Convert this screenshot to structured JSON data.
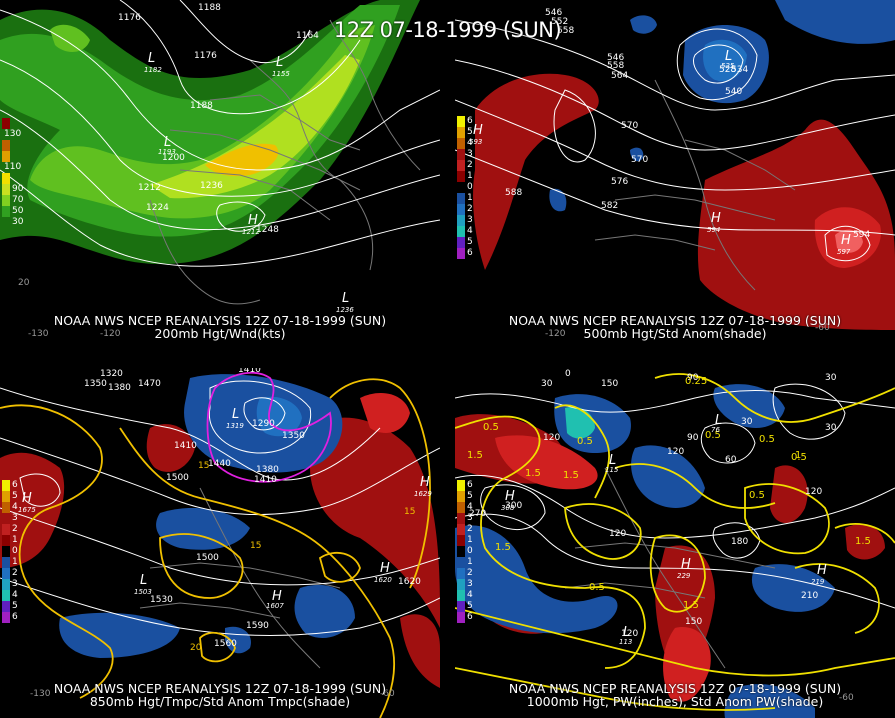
{
  "title": "12Z 07-18-1999 (SUN)",
  "source": "NOAA NWS NCEP REANALYSIS 12Z 07-18-1999 (SUN)",
  "panels": [
    {
      "id": "p1",
      "field": "200mb Hgt/Wnd(kts)",
      "legend": [
        {
          "label": "130",
          "color": "#8b0000"
        },
        {
          "label": "",
          "color": "#c06000"
        },
        {
          "label": "110",
          "color": "#e0a000"
        },
        {
          "label": "",
          "color": "#f0e000"
        },
        {
          "label": "90",
          "color": "#c8e020"
        },
        {
          "label": "70",
          "color": "#80d020"
        },
        {
          "label": "50",
          "color": "#30a020"
        },
        {
          "label": "30",
          "color": "#1a7010"
        }
      ],
      "contours": [
        "1176",
        "1188",
        "1164",
        "1176",
        "1188",
        "1200",
        "1212",
        "1224",
        "1236",
        "1248"
      ],
      "centers": [
        {
          "type": "L",
          "value": "1182"
        },
        {
          "type": "L",
          "value": "1155"
        },
        {
          "type": "L",
          "value": "1193"
        },
        {
          "type": "H",
          "value": "1212"
        },
        {
          "type": "L",
          "value": "1236"
        }
      ],
      "lon_labels": [
        "-130",
        "-120",
        "20"
      ]
    },
    {
      "id": "p2",
      "field": "500mb Hgt/Std Anom(shade)",
      "legend": [
        {
          "label": "6",
          "color": "#f0f000"
        },
        {
          "label": "5",
          "color": "#e0a000"
        },
        {
          "label": "4",
          "color": "#c06000"
        },
        {
          "label": "3",
          "color": "#a01010"
        },
        {
          "label": "2",
          "color": "#c02020"
        },
        {
          "label": "1",
          "color": "#8b0000"
        },
        {
          "label": "0",
          "color": "#000000"
        },
        {
          "label": "1",
          "color": "#1a50a0"
        },
        {
          "label": "2",
          "color": "#2070c0"
        },
        {
          "label": "3",
          "color": "#20a0c0"
        },
        {
          "label": "4",
          "color": "#20c0b0"
        },
        {
          "label": "5",
          "color": "#6020c0"
        },
        {
          "label": "6",
          "color": "#a020c0"
        }
      ],
      "contours": [
        "546",
        "552",
        "558",
        "546",
        "558",
        "564",
        "570",
        "576",
        "582",
        "588",
        "594",
        "528",
        "534",
        "540",
        "570"
      ],
      "centers": [
        {
          "type": "H",
          "value": "593"
        },
        {
          "type": "H",
          "value": "594"
        },
        {
          "type": "H",
          "value": "597"
        },
        {
          "type": "L",
          "value": "525"
        }
      ],
      "lon_labels": [
        "-120",
        "-60"
      ]
    },
    {
      "id": "p3",
      "field": "850mb Hgt/Tmpc/Std Anom Tmpc(shade)",
      "contours": [
        "1320",
        "1350",
        "1380",
        "1470",
        "1410",
        "1290",
        "1350",
        "1380",
        "1410",
        "1440",
        "1500",
        "1530",
        "1560",
        "1590",
        "1620",
        "1410",
        "1500"
      ],
      "isotherms": [
        "15",
        "20",
        "15",
        "15"
      ],
      "centers": [
        {
          "type": "L",
          "value": "1319"
        },
        {
          "type": "H",
          "value": "1675"
        },
        {
          "type": "L",
          "value": "1503"
        },
        {
          "type": "H",
          "value": "1607"
        },
        {
          "type": "H",
          "value": "1620"
        },
        {
          "type": "H",
          "value": "1629"
        }
      ],
      "lon_labels": [
        "-130",
        "-60"
      ]
    },
    {
      "id": "p4",
      "field": "1000mb Hgt, PW(inches), Std Anom PW(shade)",
      "contours": [
        "30",
        "0",
        "150",
        "90",
        "30",
        "120",
        "90",
        "60",
        "30",
        "120",
        "30",
        "120",
        "270",
        "300",
        "120",
        "180",
        "210",
        "150",
        "120"
      ],
      "pw": [
        "0.25",
        "0.5",
        "0.5",
        "1.5",
        "0.5",
        "1.5",
        "0.5",
        "1",
        "1.5",
        "0.5",
        "0.5",
        "1.5",
        "1.5",
        "0.5",
        "1.5"
      ],
      "centers": [
        {
          "type": "H",
          "value": "308"
        },
        {
          "type": "L",
          "value": "76"
        },
        {
          "type": "L",
          "value": "115"
        },
        {
          "type": "H",
          "value": "219"
        },
        {
          "type": "L",
          "value": "113"
        },
        {
          "type": "H",
          "value": "229"
        }
      ],
      "lon_labels": [
        "-60"
      ]
    }
  ]
}
